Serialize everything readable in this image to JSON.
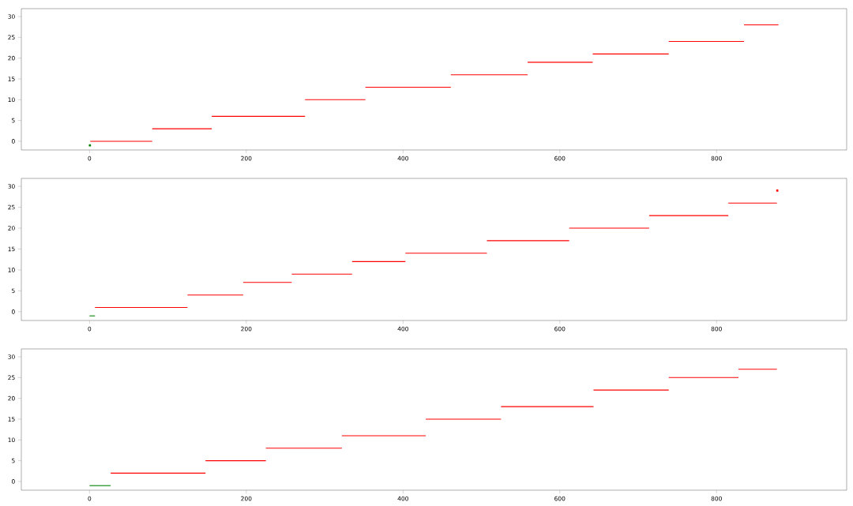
{
  "chart_data": [
    {
      "type": "line",
      "xlim": [
        -87,
        966
      ],
      "ylim": [
        -2.1,
        31.9
      ],
      "xticks": [
        0,
        200,
        400,
        600,
        800
      ],
      "yticks": [
        0,
        5,
        10,
        15,
        20,
        25,
        30
      ],
      "marker": "none",
      "line_style": "solid",
      "series": [
        {
          "type": "scatter",
          "marker": "square",
          "color": "#008000",
          "x": [
            0.5
          ],
          "values": [
            -1
          ]
        },
        {
          "color": "#ff0000",
          "x": [
            1,
            80
          ],
          "values": [
            0,
            0
          ]
        },
        {
          "color": "#ff0000",
          "x": [
            80,
            156
          ],
          "values": [
            3,
            3
          ]
        },
        {
          "color": "#ff0000",
          "x": [
            156,
            275
          ],
          "values": [
            6,
            6
          ]
        },
        {
          "color": "#ff0000",
          "x": [
            275,
            352
          ],
          "values": [
            10,
            10
          ]
        },
        {
          "color": "#ff0000",
          "x": [
            352,
            461
          ],
          "values": [
            13,
            13
          ]
        },
        {
          "color": "#ff0000",
          "x": [
            461,
            559
          ],
          "values": [
            16,
            16
          ]
        },
        {
          "color": "#ff0000",
          "x": [
            559,
            642
          ],
          "values": [
            19,
            19
          ]
        },
        {
          "color": "#ff0000",
          "x": [
            642,
            739
          ],
          "values": [
            21,
            21
          ]
        },
        {
          "color": "#ff0000",
          "x": [
            739,
            835
          ],
          "values": [
            24,
            24
          ]
        },
        {
          "color": "#ff0000",
          "x": [
            835,
            879
          ],
          "values": [
            28,
            28
          ]
        }
      ]
    },
    {
      "type": "line",
      "xlim": [
        -87,
        966
      ],
      "ylim": [
        -2.1,
        31.9
      ],
      "xticks": [
        0,
        200,
        400,
        600,
        800
      ],
      "yticks": [
        0,
        5,
        10,
        15,
        20,
        25,
        30
      ],
      "marker": "none",
      "line_style": "solid",
      "series": [
        {
          "color": "#008000",
          "x": [
            0,
            7
          ],
          "values": [
            -1,
            -1
          ]
        },
        {
          "color": "#ff0000",
          "x": [
            7,
            125
          ],
          "values": [
            1,
            1
          ]
        },
        {
          "color": "#ff0000",
          "x": [
            125,
            196
          ],
          "values": [
            4,
            4
          ]
        },
        {
          "color": "#ff0000",
          "x": [
            196,
            258
          ],
          "values": [
            7,
            7
          ]
        },
        {
          "color": "#ff0000",
          "x": [
            258,
            335
          ],
          "values": [
            9,
            9
          ]
        },
        {
          "color": "#ff0000",
          "x": [
            335,
            403
          ],
          "values": [
            12,
            12
          ]
        },
        {
          "color": "#ff0000",
          "x": [
            403,
            507
          ],
          "values": [
            14,
            14
          ]
        },
        {
          "color": "#ff0000",
          "x": [
            507,
            612
          ],
          "values": [
            17,
            17
          ]
        },
        {
          "color": "#ff0000",
          "x": [
            612,
            714
          ],
          "values": [
            20,
            20
          ]
        },
        {
          "color": "#ff0000",
          "x": [
            714,
            815
          ],
          "values": [
            23,
            23
          ]
        },
        {
          "color": "#ff0000",
          "x": [
            815,
            877
          ],
          "values": [
            26,
            26
          ]
        },
        {
          "type": "scatter",
          "marker": "square",
          "color": "#ff0000",
          "x": [
            877.5
          ],
          "values": [
            29
          ]
        }
      ]
    },
    {
      "type": "line",
      "xlim": [
        -87,
        966
      ],
      "ylim": [
        -2.1,
        31.9
      ],
      "xticks": [
        0,
        200,
        400,
        600,
        800
      ],
      "yticks": [
        0,
        5,
        10,
        15,
        20,
        25,
        30
      ],
      "marker": "none",
      "line_style": "solid",
      "series": [
        {
          "color": "#008000",
          "x": [
            0,
            27
          ],
          "values": [
            -1,
            -1
          ]
        },
        {
          "color": "#ff0000",
          "x": [
            27,
            148
          ],
          "values": [
            2,
            2
          ]
        },
        {
          "color": "#ff0000",
          "x": [
            148,
            225
          ],
          "values": [
            5,
            5
          ]
        },
        {
          "color": "#ff0000",
          "x": [
            225,
            322
          ],
          "values": [
            8,
            8
          ]
        },
        {
          "color": "#ff0000",
          "x": [
            322,
            429
          ],
          "values": [
            11,
            11
          ]
        },
        {
          "color": "#ff0000",
          "x": [
            429,
            525
          ],
          "values": [
            15,
            15
          ]
        },
        {
          "color": "#ff0000",
          "x": [
            525,
            643
          ],
          "values": [
            18,
            18
          ]
        },
        {
          "color": "#ff0000",
          "x": [
            643,
            739
          ],
          "values": [
            22,
            22
          ]
        },
        {
          "color": "#ff0000",
          "x": [
            739,
            828
          ],
          "values": [
            25,
            25
          ]
        },
        {
          "color": "#ff0000",
          "x": [
            828,
            877
          ],
          "values": [
            27,
            27
          ]
        }
      ]
    }
  ]
}
